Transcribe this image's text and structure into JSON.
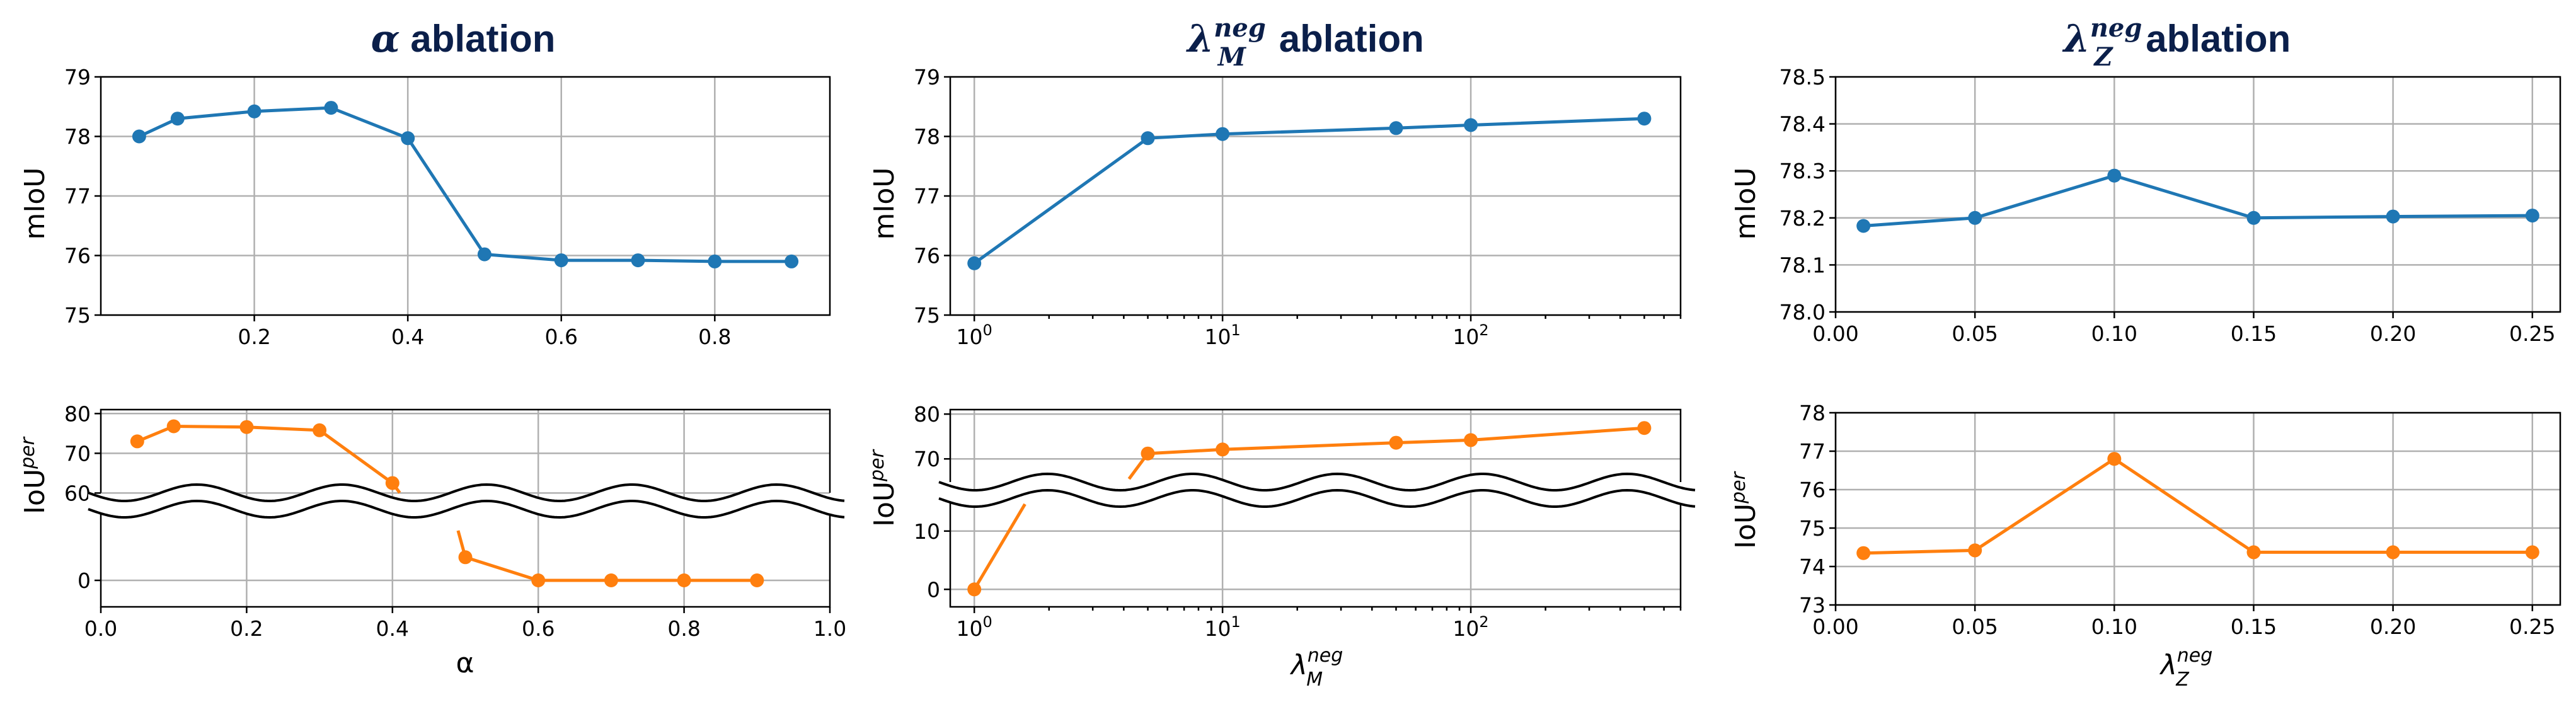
{
  "colors": {
    "blue": "#1f77b4",
    "orange": "#ff7f0e"
  },
  "chart_data": [
    {
      "type": "line",
      "title": "α ablation",
      "title_symbol": "α",
      "title_rest": " ablation",
      "ylabel": "mIoU",
      "xlabel": "",
      "ylim": [
        75,
        79
      ],
      "xlim": [
        0.0,
        0.95
      ],
      "yticks": [
        "75",
        "76",
        "77",
        "78",
        "79"
      ],
      "xticks": [
        "0.2",
        "0.4",
        "0.6",
        "0.8"
      ],
      "grid": true,
      "series": [
        {
          "x": [
            0.05,
            0.1,
            0.2,
            0.3,
            0.4,
            0.5,
            0.6,
            0.7,
            0.8,
            0.9
          ],
          "values": [
            78.0,
            78.3,
            78.42,
            78.48,
            77.97,
            76.02,
            75.92,
            75.92,
            75.9,
            75.9
          ]
        }
      ]
    },
    {
      "type": "line",
      "ylabel": "IoU",
      "ylabel_sup": "per",
      "xlabel": "α",
      "broken_axis": true,
      "ylim_upper": [
        58,
        81
      ],
      "ylim_lower": [
        -4,
        12
      ],
      "xlim": [
        0.0,
        1.0
      ],
      "yticks": [
        "60",
        "70",
        "80",
        "0"
      ],
      "xticks": [
        "0.0",
        "0.2",
        "0.4",
        "0.6",
        "0.8",
        "1.0"
      ],
      "grid": true,
      "series": [
        {
          "x": [
            0.05,
            0.1,
            0.2,
            0.3,
            0.4,
            0.5,
            0.6,
            0.7,
            0.8,
            0.9
          ],
          "values": [
            73,
            76.8,
            76.6,
            75.8,
            62.5,
            3.5,
            0,
            0,
            0,
            0
          ]
        }
      ]
    },
    {
      "type": "line",
      "title": "λ_M^neg ablation",
      "title_symbol": "λ",
      "title_sub": "M",
      "title_sup": "neg",
      "title_rest": " ablation",
      "ylabel": "mIoU",
      "xlabel": "",
      "xscale": "log",
      "ylim": [
        75,
        79
      ],
      "xlim": [
        0.8,
        700
      ],
      "yticks": [
        "75",
        "76",
        "77",
        "78",
        "79"
      ],
      "xticks": [
        "10",
        "10",
        "10"
      ],
      "xtick_exponents": [
        "0",
        "1",
        "2"
      ],
      "grid": true,
      "series": [
        {
          "x": [
            1,
            5,
            10,
            50,
            100,
            500
          ],
          "values": [
            75.87,
            77.97,
            78.04,
            78.14,
            78.19,
            78.3
          ]
        }
      ]
    },
    {
      "type": "line",
      "ylabel": "IoU",
      "ylabel_sup": "per",
      "xlabel": "λ",
      "xlabel_sub": "M",
      "xlabel_sup": "neg",
      "xscale": "log",
      "broken_axis": true,
      "ylim_upper": [
        63,
        81
      ],
      "ylim_lower": [
        -3,
        17
      ],
      "xlim": [
        0.8,
        700
      ],
      "yticks": [
        "70",
        "80",
        "0",
        "10"
      ],
      "xticks": [
        "10",
        "10",
        "10"
      ],
      "xtick_exponents": [
        "0",
        "1",
        "2"
      ],
      "grid": true,
      "series": [
        {
          "x": [
            1,
            5,
            10,
            50,
            100,
            500
          ],
          "values": [
            0,
            71.2,
            72.1,
            73.6,
            74.2,
            76.9
          ]
        }
      ]
    },
    {
      "type": "line",
      "title": "λ_Z^neg ablation",
      "title_symbol": "λ",
      "title_sub": "Z",
      "title_sup": "neg",
      "title_rest": " ablation",
      "ylabel": "mIoU",
      "xlabel": "",
      "ylim": [
        78.0,
        78.5
      ],
      "xlim": [
        0.0,
        0.26
      ],
      "yticks": [
        "78.0",
        "78.1",
        "78.2",
        "78.3",
        "78.4",
        "78.5"
      ],
      "xticks": [
        "0.00",
        "0.05",
        "0.10",
        "0.15",
        "0.20",
        "0.25"
      ],
      "grid": true,
      "series": [
        {
          "x": [
            0.01,
            0.05,
            0.1,
            0.15,
            0.2,
            0.25
          ],
          "values": [
            78.183,
            78.2,
            78.29,
            78.2,
            78.203,
            78.205
          ]
        }
      ]
    },
    {
      "type": "line",
      "ylabel": "IoU",
      "ylabel_sup": "per",
      "xlabel": "λ",
      "xlabel_sub": "Z",
      "xlabel_sup": "neg",
      "ylim": [
        73,
        78
      ],
      "xlim": [
        0.0,
        0.26
      ],
      "yticks": [
        "73",
        "74",
        "75",
        "76",
        "77",
        "78"
      ],
      "xticks": [
        "0.00",
        "0.05",
        "0.10",
        "0.15",
        "0.20",
        "0.25"
      ],
      "grid": true,
      "series": [
        {
          "x": [
            0.01,
            0.05,
            0.1,
            0.15,
            0.2,
            0.25
          ],
          "values": [
            74.35,
            74.42,
            76.8,
            74.37,
            74.37,
            74.37
          ]
        }
      ]
    }
  ]
}
